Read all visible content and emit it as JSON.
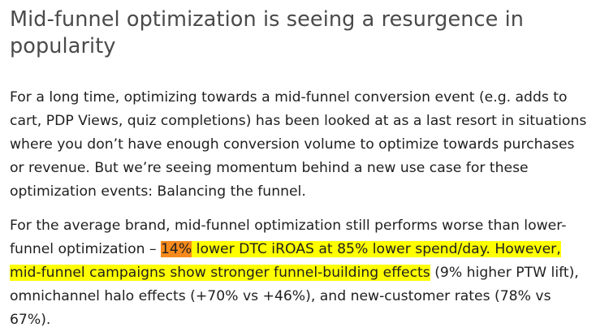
{
  "article": {
    "heading": "Mid-funnel optimization is seeing a resurgence in popularity",
    "paragraph1": "For a long time, optimizing towards a mid-funnel conversion event (e.g. adds to cart, PDP Views, quiz completions) has been looked at as a last resort in situations where you don’t have enough conversion volume to optimize towards purchases or revenue. But we’re seeing momentum behind a new use case for these optimization events: Balancing the funnel.",
    "paragraph2": {
      "lead": "For the average brand, mid-funnel optimization still performs worse than lower-funnel optimization – ",
      "highlight_orange": "14%",
      "highlight_yellow": " lower DTC iROAS at 85% lower spend/day. However, mid-funnel campaigns show stronger funnel-building effects",
      "tail": " (9% higher PTW lift), omnichannel halo effects (+70% vs +46%), and new-customer rates (78% vs 67%)."
    }
  },
  "colors": {
    "heading_text": "#4a4a4a",
    "body_text": "#1f1f1f",
    "highlight_yellow": "#ffff00",
    "highlight_orange": "#f78a1c"
  }
}
